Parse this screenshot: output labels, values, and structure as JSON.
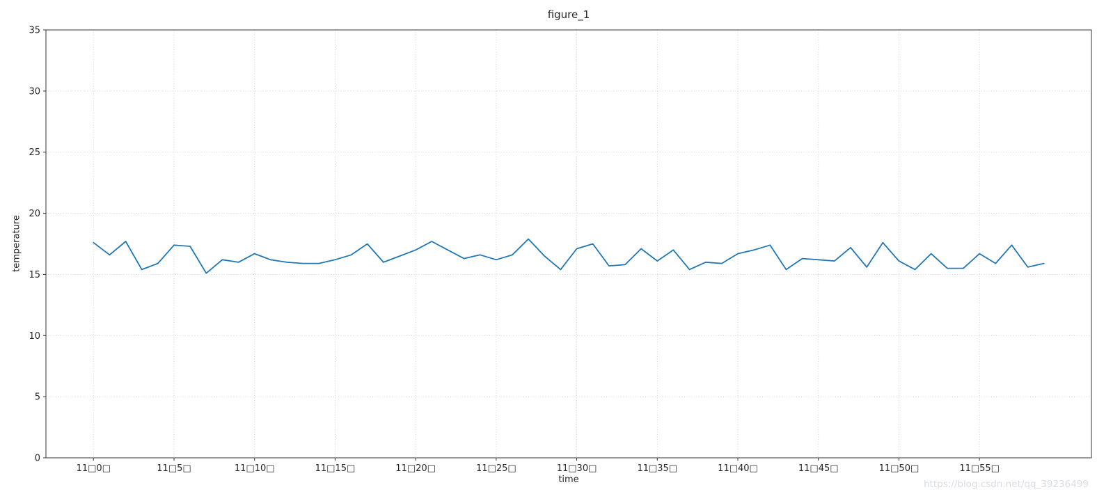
{
  "watermark": {
    "text": "https://blog.csdn.net/qq_39236499",
    "color": "#d9dce2"
  },
  "chart_data": {
    "type": "line",
    "title": "figure_1",
    "xlabel": "time",
    "ylabel": "temperature",
    "ylim": [
      0,
      35
    ],
    "yticks": [
      0,
      5,
      10,
      15,
      20,
      25,
      30,
      35
    ],
    "grid": true,
    "legend": "none",
    "line_color": "#1f77b4",
    "xtick_indices": [
      0,
      5,
      10,
      15,
      20,
      25,
      30,
      35,
      40,
      45,
      50,
      55
    ],
    "xtick_labels": [
      "11□0□",
      "11□5□",
      "11□10□",
      "11□15□",
      "11□20□",
      "11□25□",
      "11□30□",
      "11□35□",
      "11□40□",
      "11□45□",
      "11□50□",
      "11□55□"
    ],
    "x": [
      0,
      1,
      2,
      3,
      4,
      5,
      6,
      7,
      8,
      9,
      10,
      11,
      12,
      13,
      14,
      15,
      16,
      17,
      18,
      19,
      20,
      21,
      22,
      23,
      24,
      25,
      26,
      27,
      28,
      29,
      30,
      31,
      32,
      33,
      34,
      35,
      36,
      37,
      38,
      39,
      40,
      41,
      42,
      43,
      44,
      45,
      46,
      47,
      48,
      49,
      50,
      51,
      52,
      53,
      54,
      55,
      56,
      57,
      58,
      59
    ],
    "values": [
      17.6,
      16.6,
      17.7,
      15.4,
      15.9,
      17.4,
      17.3,
      15.1,
      16.2,
      16.0,
      16.7,
      16.2,
      16.0,
      15.9,
      15.9,
      16.2,
      16.6,
      17.5,
      16.0,
      16.5,
      17.0,
      17.7,
      17.0,
      16.3,
      16.6,
      16.2,
      16.6,
      17.9,
      16.5,
      15.4,
      17.1,
      17.5,
      15.7,
      15.8,
      17.1,
      16.1,
      17.0,
      15.4,
      16.0,
      15.9,
      16.7,
      17.0,
      17.4,
      15.4,
      16.3,
      16.2,
      16.1,
      17.2,
      15.6,
      17.6,
      16.1,
      15.4,
      16.7,
      15.5,
      15.5,
      16.7,
      15.9,
      17.4,
      15.6,
      15.9
    ]
  }
}
